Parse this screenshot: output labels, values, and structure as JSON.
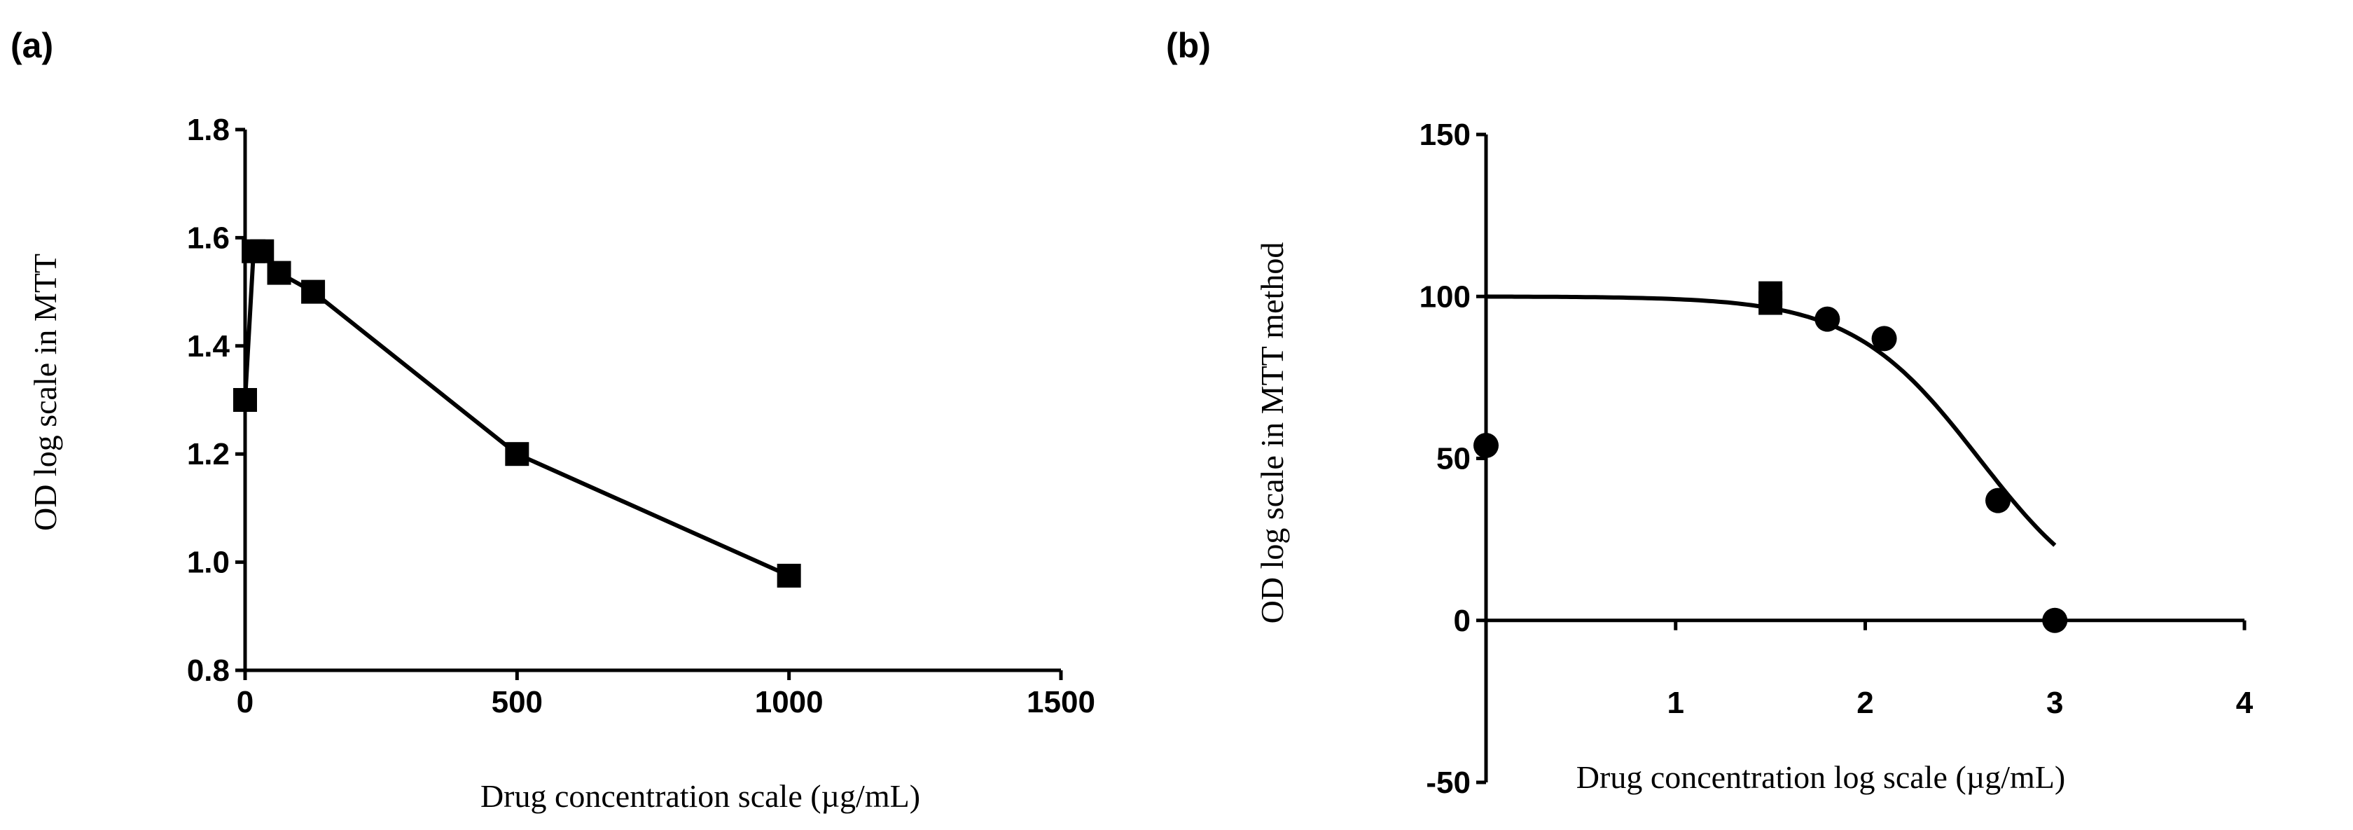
{
  "chart_data": [
    {
      "panel": "(a)",
      "type": "line",
      "title": "",
      "xlabel": "Drug concentration scale (µg/mL)",
      "ylabel": "OD log scale in MTT",
      "xlim": [
        0,
        1500
      ],
      "ylim": [
        0.8,
        1.8
      ],
      "xticks": [
        0,
        500,
        1000,
        1500
      ],
      "xtick_labels": [
        "0",
        "500",
        "1000",
        "1500"
      ],
      "yticks": [
        0.8,
        1.0,
        1.2,
        1.4,
        1.6,
        1.8
      ],
      "ytick_labels": [
        "0.8",
        "1.0",
        "1.2",
        "1.4",
        "1.6",
        "1.8"
      ],
      "grid": false,
      "marker": "square",
      "series": [
        {
          "name": "OD",
          "x": [
            0,
            15.6,
            31.25,
            62.5,
            125,
            500,
            1000
          ],
          "y": [
            1.3,
            1.575,
            1.575,
            1.535,
            1.5,
            1.2,
            0.975
          ]
        }
      ]
    },
    {
      "panel": "(b)",
      "type": "scatter",
      "title": "",
      "xlabel": "Drug concentration log scale (µg/mL)",
      "ylabel": "OD log scale in MTT method",
      "xlim": [
        0,
        4
      ],
      "ylim": [
        -50,
        150
      ],
      "xticks": [
        1,
        2,
        3,
        4
      ],
      "xtick_labels": [
        "1",
        "2",
        "3",
        "4"
      ],
      "yticks": [
        -50,
        0,
        50,
        100,
        150
      ],
      "ytick_labels": [
        "-50",
        "0",
        "50",
        "100",
        "150"
      ],
      "grid": false,
      "series": [
        {
          "name": "squares",
          "marker": "square",
          "x": [
            1.5,
            1.5
          ],
          "y": [
            101,
            98
          ]
        },
        {
          "name": "circles",
          "marker": "circle",
          "x": [
            0,
            1.8,
            2.1,
            2.7,
            3.0
          ],
          "y": [
            54,
            93,
            87,
            37,
            0
          ]
        }
      ],
      "fit": {
        "type": "sigmoid",
        "top": 100,
        "bottom": 0,
        "log_ic50": 2.6,
        "hill_slope": -1.3,
        "x_range": [
          0,
          3.0
        ]
      }
    }
  ]
}
